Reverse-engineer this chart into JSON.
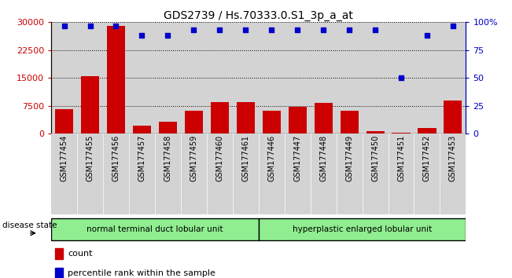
{
  "title": "GDS2739 / Hs.70333.0.S1_3p_a_at",
  "samples": [
    "GSM177454",
    "GSM177455",
    "GSM177456",
    "GSM177457",
    "GSM177458",
    "GSM177459",
    "GSM177460",
    "GSM177461",
    "GSM177446",
    "GSM177447",
    "GSM177448",
    "GSM177449",
    "GSM177450",
    "GSM177451",
    "GSM177452",
    "GSM177453"
  ],
  "bar_values": [
    6500,
    15500,
    29000,
    2200,
    3200,
    6200,
    8500,
    8500,
    6200,
    7200,
    8200,
    6200,
    700,
    200,
    1500,
    8800
  ],
  "dot_values_pct": [
    97,
    97,
    97,
    88,
    88,
    93,
    93,
    93,
    93,
    93,
    93,
    93,
    93,
    50,
    88,
    97
  ],
  "bar_color": "#cc0000",
  "dot_color": "#0000cc",
  "group1_label": "normal terminal duct lobular unit",
  "group2_label": "hyperplastic enlarged lobular unit",
  "group1_count": 8,
  "group2_count": 8,
  "ylim_left": [
    0,
    30000
  ],
  "ylim_right": [
    0,
    100
  ],
  "yticks_left": [
    0,
    7500,
    15000,
    22500,
    30000
  ],
  "yticks_right": [
    0,
    25,
    50,
    75,
    100
  ],
  "legend_count_label": "count",
  "legend_pct_label": "percentile rank within the sample",
  "disease_state_label": "disease state",
  "group1_color": "#90ee90",
  "group2_color": "#90ee90",
  "background_color": "#ffffff",
  "bar_area_bg": "#d3d3d3",
  "title_fontsize": 10,
  "dot_size": 20
}
